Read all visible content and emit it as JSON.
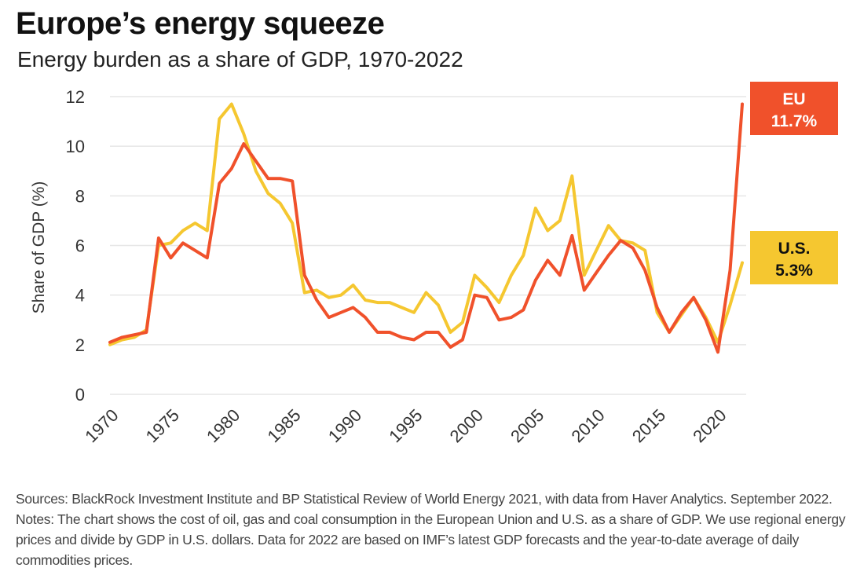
{
  "title": "Europe’s energy squeeze",
  "subtitle": "Energy burden as a share of GDP, 1970-2022",
  "notes": "Sources: BlackRock Investment Institute and BP Statistical Review of World Energy 2021, with data from Haver Analytics. September 2022. Notes: The chart shows the cost of oil, gas and coal consumption in the European Union and U.S. as a share of GDP. We use regional energy prices and divide by GDP in U.S. dollars. Data for 2022 are based on IMF’s latest GDP forecasts and the year-to-date average of daily commodities prices.",
  "colors": {
    "eu": "#f0512b",
    "us": "#f5c730",
    "grid": "#e6e6e6"
  },
  "chart_data": {
    "type": "line",
    "title": "Europe’s energy squeeze",
    "subtitle": "Energy burden as a share of GDP, 1970-2022",
    "xlabel": "",
    "ylabel": "Share of GDP (%)",
    "ylim": [
      0,
      12
    ],
    "yticks": [
      "0",
      "2",
      "4",
      "6",
      "8",
      "10",
      "12"
    ],
    "xticks": [
      "1970",
      "1975",
      "1980",
      "1985",
      "1990",
      "1995",
      "2000",
      "2005",
      "2010",
      "2015",
      "2020"
    ],
    "grid": true,
    "x": [
      1970,
      1971,
      1972,
      1973,
      1974,
      1975,
      1976,
      1977,
      1978,
      1979,
      1980,
      1981,
      1982,
      1983,
      1984,
      1985,
      1986,
      1987,
      1988,
      1989,
      1990,
      1991,
      1992,
      1993,
      1994,
      1995,
      1996,
      1997,
      1998,
      1999,
      2000,
      2001,
      2002,
      2003,
      2004,
      2005,
      2006,
      2007,
      2008,
      2009,
      2010,
      2011,
      2012,
      2013,
      2014,
      2015,
      2016,
      2017,
      2018,
      2019,
      2020,
      2021,
      2022
    ],
    "series": [
      {
        "name": "EU",
        "values": [
          2.1,
          2.3,
          2.4,
          2.5,
          6.3,
          5.5,
          6.1,
          5.8,
          5.5,
          8.5,
          9.1,
          10.1,
          9.4,
          8.7,
          8.7,
          8.6,
          4.8,
          3.8,
          3.1,
          3.3,
          3.5,
          3.1,
          2.5,
          2.5,
          2.3,
          2.2,
          2.5,
          2.5,
          1.9,
          2.2,
          4.0,
          3.9,
          3.0,
          3.1,
          3.4,
          4.6,
          5.4,
          4.8,
          6.4,
          4.2,
          4.9,
          5.6,
          6.2,
          5.9,
          5.0,
          3.5,
          2.5,
          3.3,
          3.9,
          3.0,
          1.7,
          5.0,
          11.7
        ]
      },
      {
        "name": "U.S.",
        "values": [
          2.0,
          2.2,
          2.3,
          2.6,
          6.0,
          6.1,
          6.6,
          6.9,
          6.6,
          11.1,
          11.7,
          10.5,
          9.0,
          8.1,
          7.7,
          6.9,
          4.1,
          4.2,
          3.9,
          4.0,
          4.4,
          3.8,
          3.7,
          3.7,
          3.5,
          3.3,
          4.1,
          3.6,
          2.5,
          2.9,
          4.8,
          4.3,
          3.7,
          4.8,
          5.6,
          7.5,
          6.6,
          7.0,
          8.8,
          4.8,
          5.8,
          6.8,
          6.2,
          6.1,
          5.8,
          3.3,
          2.5,
          3.2,
          3.9,
          3.1,
          2.1,
          3.6,
          5.3
        ]
      }
    ],
    "annotations": [
      {
        "series": "EU",
        "label": "EU",
        "value": "11.7%"
      },
      {
        "series": "U.S.",
        "label": "U.S.",
        "value": "5.3%"
      }
    ]
  }
}
